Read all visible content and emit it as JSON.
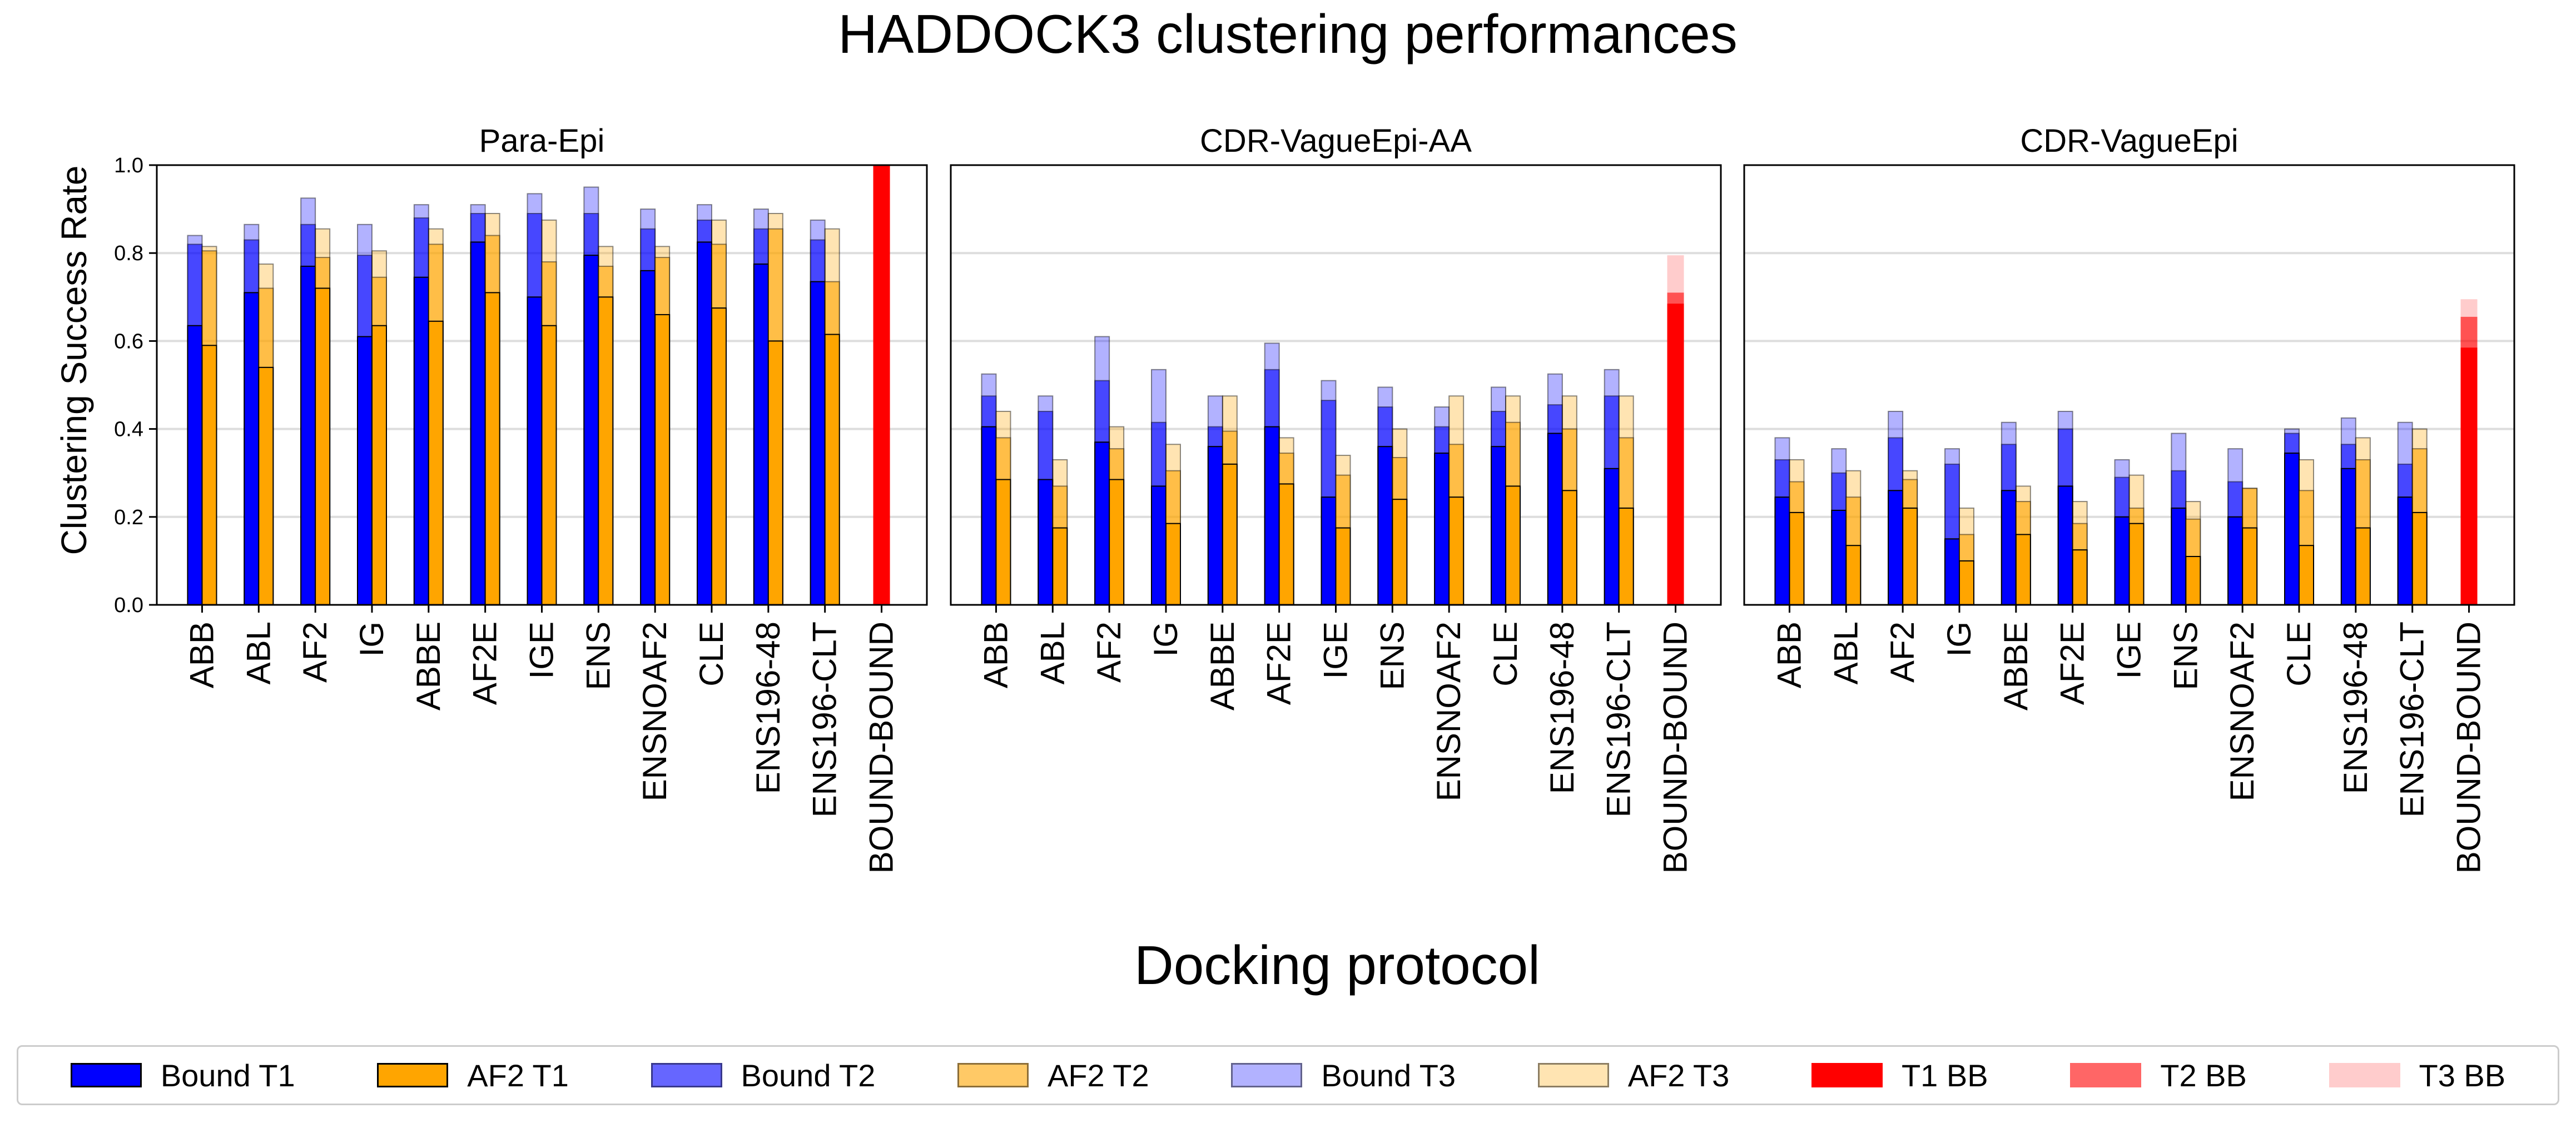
{
  "figure": {
    "title": "HADDOCK3 clustering performances",
    "xlabel": "Docking protocol",
    "ylabel": "Clustering Success Rate"
  },
  "colors": {
    "bound": "#0000ff",
    "af2": "#ffa500",
    "bb": "#ff0000",
    "grid": "#dddddd",
    "edge": "#000000"
  },
  "legend": {
    "placement": "bottom",
    "items": [
      {
        "label": "Bound T1",
        "color": "#0000ff",
        "alpha": 1.0,
        "edge": true
      },
      {
        "label": "AF2 T1",
        "color": "#ffa500",
        "alpha": 1.0,
        "edge": true
      },
      {
        "label": "Bound T2",
        "color": "#0000ff",
        "alpha": 0.6,
        "edge": true
      },
      {
        "label": "AF2 T2",
        "color": "#ffa500",
        "alpha": 0.6,
        "edge": true
      },
      {
        "label": "Bound T3",
        "color": "#0000ff",
        "alpha": 0.3,
        "edge": true
      },
      {
        "label": "AF2 T3",
        "color": "#ffa500",
        "alpha": 0.3,
        "edge": true
      },
      {
        "label": "T1 BB",
        "color": "#ff0000",
        "alpha": 1.0,
        "edge": false
      },
      {
        "label": "T2 BB",
        "color": "#ff0000",
        "alpha": 0.6,
        "edge": false
      },
      {
        "label": "T3 BB",
        "color": "#ff0000",
        "alpha": 0.2,
        "edge": false
      }
    ]
  },
  "chart_data": [
    {
      "type": "bar",
      "title": "Para-Epi",
      "xlabel": "",
      "ylabel": "Clustering Success Rate",
      "ylim": [
        0,
        1.0
      ],
      "yticks": [
        "0.0",
        "0.2",
        "0.4",
        "0.6",
        "0.8",
        "1.0"
      ],
      "grid": true,
      "categories": [
        "ABB",
        "ABL",
        "AF2",
        "IG",
        "ABBE",
        "AF2E",
        "IGE",
        "ENS",
        "ENSNOAF2",
        "CLE",
        "ENS196-48",
        "ENS196-CLT",
        "BOUND-BOUND"
      ],
      "series": [
        {
          "name": "Bound T1",
          "values": [
            0.635,
            0.71,
            0.77,
            0.61,
            0.745,
            0.825,
            0.7,
            0.795,
            0.76,
            0.825,
            0.775,
            0.735,
            null
          ]
        },
        {
          "name": "Bound T2",
          "values": [
            0.82,
            0.83,
            0.865,
            0.795,
            0.88,
            0.89,
            0.89,
            0.89,
            0.855,
            0.875,
            0.855,
            0.83,
            null
          ]
        },
        {
          "name": "Bound T3",
          "values": [
            0.84,
            0.865,
            0.925,
            0.865,
            0.91,
            0.91,
            0.935,
            0.95,
            0.9,
            0.91,
            0.9,
            0.875,
            null
          ]
        },
        {
          "name": "AF2 T1",
          "values": [
            0.59,
            0.54,
            0.72,
            0.635,
            0.645,
            0.71,
            0.635,
            0.7,
            0.66,
            0.675,
            0.6,
            0.615,
            null
          ]
        },
        {
          "name": "AF2 T2",
          "values": [
            0.805,
            0.72,
            0.79,
            0.745,
            0.82,
            0.84,
            0.78,
            0.77,
            0.79,
            0.82,
            0.855,
            0.735,
            null
          ]
        },
        {
          "name": "AF2 T3",
          "values": [
            0.815,
            0.775,
            0.855,
            0.805,
            0.855,
            0.89,
            0.875,
            0.815,
            0.815,
            0.875,
            0.89,
            0.855,
            null
          ]
        },
        {
          "name": "T1 BB",
          "values": [
            null,
            null,
            null,
            null,
            null,
            null,
            null,
            null,
            null,
            null,
            null,
            null,
            1.0
          ]
        },
        {
          "name": "T2 BB",
          "values": [
            null,
            null,
            null,
            null,
            null,
            null,
            null,
            null,
            null,
            null,
            null,
            null,
            1.0
          ]
        },
        {
          "name": "T3 BB",
          "values": [
            null,
            null,
            null,
            null,
            null,
            null,
            null,
            null,
            null,
            null,
            null,
            null,
            1.0
          ]
        }
      ]
    },
    {
      "type": "bar",
      "title": "CDR-VagueEpi-AA",
      "xlabel": "",
      "ylabel": "",
      "ylim": [
        0,
        1.0
      ],
      "grid": true,
      "categories": [
        "ABB",
        "ABL",
        "AF2",
        "IG",
        "ABBE",
        "AF2E",
        "IGE",
        "ENS",
        "ENSNOAF2",
        "CLE",
        "ENS196-48",
        "ENS196-CLT",
        "BOUND-BOUND"
      ],
      "series": [
        {
          "name": "Bound T1",
          "values": [
            0.405,
            0.285,
            0.37,
            0.27,
            0.36,
            0.405,
            0.245,
            0.36,
            0.345,
            0.36,
            0.39,
            0.31,
            null
          ]
        },
        {
          "name": "Bound T2",
          "values": [
            0.475,
            0.44,
            0.51,
            0.415,
            0.405,
            0.535,
            0.465,
            0.45,
            0.405,
            0.44,
            0.455,
            0.475,
            null
          ]
        },
        {
          "name": "Bound T3",
          "values": [
            0.525,
            0.475,
            0.61,
            0.535,
            0.475,
            0.595,
            0.51,
            0.495,
            0.45,
            0.495,
            0.525,
            0.535,
            null
          ]
        },
        {
          "name": "AF2 T1",
          "values": [
            0.285,
            0.175,
            0.285,
            0.185,
            0.32,
            0.275,
            0.175,
            0.24,
            0.245,
            0.27,
            0.26,
            0.22,
            null
          ]
        },
        {
          "name": "AF2 T2",
          "values": [
            0.38,
            0.27,
            0.355,
            0.305,
            0.395,
            0.345,
            0.295,
            0.335,
            0.365,
            0.415,
            0.4,
            0.38,
            null
          ]
        },
        {
          "name": "AF2 T3",
          "values": [
            0.44,
            0.33,
            0.405,
            0.365,
            0.475,
            0.38,
            0.34,
            0.4,
            0.475,
            0.475,
            0.475,
            0.475,
            null
          ]
        },
        {
          "name": "T1 BB",
          "values": [
            null,
            null,
            null,
            null,
            null,
            null,
            null,
            null,
            null,
            null,
            null,
            null,
            0.685
          ]
        },
        {
          "name": "T2 BB",
          "values": [
            null,
            null,
            null,
            null,
            null,
            null,
            null,
            null,
            null,
            null,
            null,
            null,
            0.71
          ]
        },
        {
          "name": "T3 BB",
          "values": [
            null,
            null,
            null,
            null,
            null,
            null,
            null,
            null,
            null,
            null,
            null,
            null,
            0.795
          ]
        }
      ]
    },
    {
      "type": "bar",
      "title": "CDR-VagueEpi",
      "xlabel": "",
      "ylabel": "",
      "ylim": [
        0,
        1.0
      ],
      "grid": true,
      "categories": [
        "ABB",
        "ABL",
        "AF2",
        "IG",
        "ABBE",
        "AF2E",
        "IGE",
        "ENS",
        "ENSNOAF2",
        "CLE",
        "ENS196-48",
        "ENS196-CLT",
        "BOUND-BOUND"
      ],
      "series": [
        {
          "name": "Bound T1",
          "values": [
            0.245,
            0.215,
            0.26,
            0.15,
            0.26,
            0.27,
            0.2,
            0.22,
            0.2,
            0.345,
            0.31,
            0.245,
            null
          ]
        },
        {
          "name": "Bound T2",
          "values": [
            0.33,
            0.3,
            0.38,
            0.32,
            0.365,
            0.4,
            0.29,
            0.305,
            0.28,
            0.39,
            0.365,
            0.32,
            null
          ]
        },
        {
          "name": "Bound T3",
          "values": [
            0.38,
            0.355,
            0.44,
            0.355,
            0.415,
            0.44,
            0.33,
            0.39,
            0.355,
            0.4,
            0.425,
            0.415,
            null
          ]
        },
        {
          "name": "AF2 T1",
          "values": [
            0.21,
            0.135,
            0.22,
            0.1,
            0.16,
            0.125,
            0.185,
            0.11,
            0.175,
            0.135,
            0.175,
            0.21,
            null
          ]
        },
        {
          "name": "AF2 T2",
          "values": [
            0.28,
            0.245,
            0.285,
            0.16,
            0.235,
            0.185,
            0.22,
            0.195,
            0.265,
            0.26,
            0.33,
            0.355,
            null
          ]
        },
        {
          "name": "AF2 T3",
          "values": [
            0.33,
            0.305,
            0.305,
            0.22,
            0.27,
            0.235,
            0.295,
            0.235,
            0.265,
            0.33,
            0.38,
            0.4,
            null
          ]
        },
        {
          "name": "T1 BB",
          "values": [
            null,
            null,
            null,
            null,
            null,
            null,
            null,
            null,
            null,
            null,
            null,
            null,
            0.585
          ]
        },
        {
          "name": "T2 BB",
          "values": [
            null,
            null,
            null,
            null,
            null,
            null,
            null,
            null,
            null,
            null,
            null,
            null,
            0.655
          ]
        },
        {
          "name": "T3 BB",
          "values": [
            null,
            null,
            null,
            null,
            null,
            null,
            null,
            null,
            null,
            null,
            null,
            null,
            0.695
          ]
        }
      ]
    }
  ]
}
